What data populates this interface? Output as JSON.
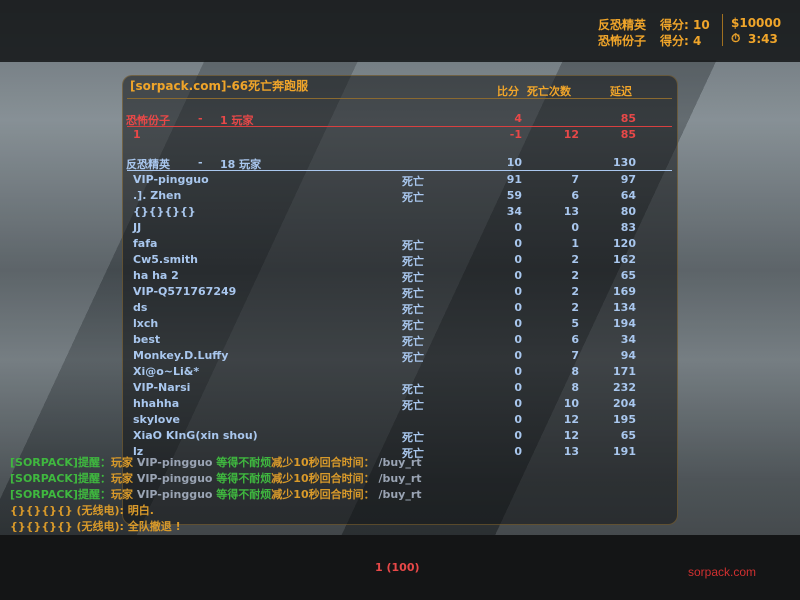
{
  "hud": {
    "ct_team": "反恐精英",
    "ct_score": "得分: 10",
    "t_team": "恐怖份子",
    "t_score": "得分: 4",
    "money": "$10000",
    "timer": "3:43",
    "timer_icon": "stopwatch-icon"
  },
  "scoreboard": {
    "server_name": "[sorpack.com]-66死亡奔跑服",
    "columns": {
      "score": "比分",
      "deaths": "死亡次数",
      "ping": "延迟"
    },
    "terrorists": {
      "team": "恐怖份子",
      "dash": "-",
      "players_label": "1 玩家",
      "score": "4",
      "ping": "85",
      "players": [
        {
          "name": "1",
          "status": "",
          "score": "-1",
          "deaths": "12",
          "ping": "85"
        }
      ]
    },
    "counter_terrorists": {
      "team": "反恐精英",
      "dash": "-",
      "players_label": "18 玩家",
      "score": "10",
      "ping": "130",
      "players": [
        {
          "name": "VIP-pingguo",
          "status": "死亡",
          "score": "91",
          "deaths": "7",
          "ping": "97"
        },
        {
          "name": ".]. Zhen",
          "status": "死亡",
          "score": "59",
          "deaths": "6",
          "ping": "64"
        },
        {
          "name": "{}{}{}{}",
          "status": "",
          "score": "34",
          "deaths": "13",
          "ping": "80"
        },
        {
          "name": "JJ",
          "status": "",
          "score": "0",
          "deaths": "0",
          "ping": "83"
        },
        {
          "name": "fafa",
          "status": "死亡",
          "score": "0",
          "deaths": "1",
          "ping": "120"
        },
        {
          "name": "Cw5.smith",
          "status": "死亡",
          "score": "0",
          "deaths": "2",
          "ping": "162"
        },
        {
          "name": "ha  ha 2",
          "status": "死亡",
          "score": "0",
          "deaths": "2",
          "ping": "65"
        },
        {
          "name": "VIP-Q571767249",
          "status": "死亡",
          "score": "0",
          "deaths": "2",
          "ping": "169"
        },
        {
          "name": "ds",
          "status": "死亡",
          "score": "0",
          "deaths": "2",
          "ping": "134"
        },
        {
          "name": "lxch",
          "status": "死亡",
          "score": "0",
          "deaths": "5",
          "ping": "194"
        },
        {
          "name": "best",
          "status": "死亡",
          "score": "0",
          "deaths": "6",
          "ping": "34"
        },
        {
          "name": "Monkey.D.Luffy",
          "status": "死亡",
          "score": "0",
          "deaths": "7",
          "ping": "94"
        },
        {
          "name": "Xi@o~Li&*",
          "status": "",
          "score": "0",
          "deaths": "8",
          "ping": "171"
        },
        {
          "name": "VIP-Narsi",
          "status": "死亡",
          "score": "0",
          "deaths": "8",
          "ping": "232"
        },
        {
          "name": "hhahha",
          "status": "死亡",
          "score": "0",
          "deaths": "10",
          "ping": "204"
        },
        {
          "name": "skylove",
          "status": "",
          "score": "0",
          "deaths": "12",
          "ping": "195"
        },
        {
          "name": "XiaO KInG(xin shou)",
          "status": "死亡",
          "score": "0",
          "deaths": "12",
          "ping": "65"
        },
        {
          "name": "lz",
          "status": "死亡",
          "score": "0",
          "deaths": "13",
          "ping": "191"
        }
      ]
    }
  },
  "chat": {
    "notices": [
      {
        "tag": "[SORPACK]提醒：",
        "a": "玩家 ",
        "player": "VIP-pingguo ",
        "b": "等得不耐烦",
        "c": "减少10秒回合时间：",
        "cmd": " /buy_rt"
      },
      {
        "tag": "[SORPACK]提醒：",
        "a": "玩家 ",
        "player": "VIP-pingguo ",
        "b": "等得不耐烦",
        "c": "减少10秒回合时间：",
        "cmd": " /buy_rt"
      },
      {
        "tag": "[SORPACK]提醒：",
        "a": "玩家 ",
        "player": "VIP-pingguo ",
        "b": "等得不耐烦",
        "c": "减少10秒回合时间：",
        "cmd": " /buy_rt"
      }
    ],
    "radio": [
      "{}{}{}{} (无线电): 明白.",
      "{}{}{}{} (无线电): 全队撤退 !"
    ]
  },
  "bottom": {
    "spectator_info": "1 (100)",
    "watermark": "sorpack.com"
  },
  "colors": {
    "hud": "#f0a52a",
    "terrorist": "#e84848",
    "ct": "#a9c7ee",
    "chat_green": "#3fb83f"
  }
}
